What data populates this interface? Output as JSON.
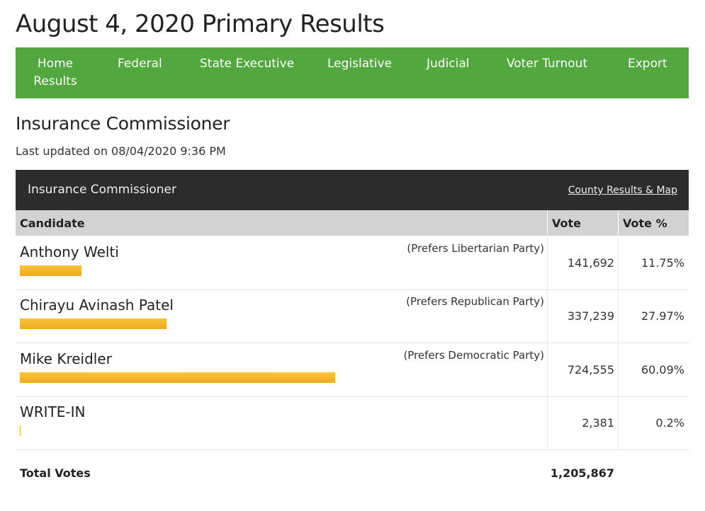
{
  "header": {
    "title": "August 4, 2020 Primary Results"
  },
  "nav": [
    "Home Results",
    "Federal",
    "State Executive",
    "Legislative",
    "Judicial",
    "Voter Turnout",
    "Export"
  ],
  "race": {
    "title": "Insurance Commissioner",
    "last_updated": "Last updated on 08/04/2020 9:36 PM"
  },
  "table": {
    "title": "Insurance Commissioner",
    "link": "County Results & Map",
    "columns": [
      "Candidate",
      "Vote",
      "Vote %"
    ],
    "rows": [
      {
        "candidate": "Anthony Welti",
        "party": "(Prefers Libertarian Party)",
        "vote": "141,692",
        "percent": {
          "value": 11.75,
          "label": "11.75%"
        }
      },
      {
        "candidate": "Chirayu Avinash Patel",
        "party": "(Prefers Republican Party)",
        "vote": "337,239",
        "percent": {
          "value": 27.97,
          "label": "27.97%"
        }
      },
      {
        "candidate": "Mike Kreidler",
        "party": "(Prefers Democratic Party)",
        "vote": "724,555",
        "percent": {
          "value": 60.09,
          "label": "60.09%"
        }
      },
      {
        "candidate": "WRITE-IN",
        "party": null,
        "vote": "2,381",
        "percent": {
          "value": 0.2,
          "label": "0.2%"
        }
      }
    ],
    "total": {
      "label": "Total Votes",
      "vote": "1,205,867"
    }
  }
}
